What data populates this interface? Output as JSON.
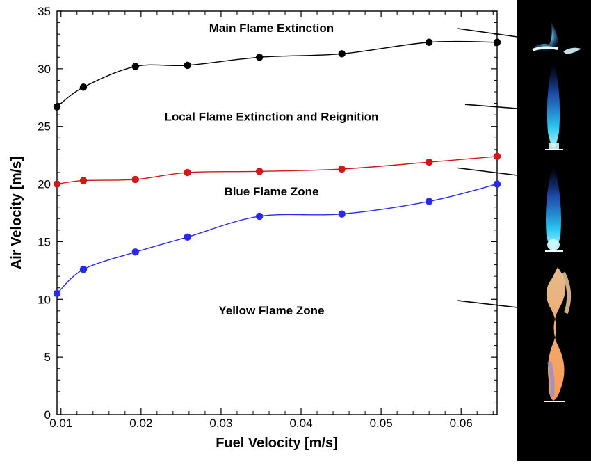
{
  "chart_data": {
    "type": "line",
    "title": "",
    "xlabel": "Fuel Velocity [m/s]",
    "ylabel": "Air Velocity [m/s]",
    "xlim": [
      0.0095,
      0.0645
    ],
    "ylim": [
      0,
      35
    ],
    "xticks": [
      0.01,
      0.02,
      0.03,
      0.04,
      0.05,
      0.06
    ],
    "xtick_labels": [
      "0.01",
      "0.02",
      "0.03",
      "0.04",
      "0.05",
      "0.06"
    ],
    "yticks": [
      0,
      5,
      10,
      15,
      20,
      25,
      30,
      35
    ],
    "ytick_labels": [
      "0",
      "5",
      "10",
      "15",
      "20",
      "25",
      "30",
      "35"
    ],
    "grid": false,
    "legend": false,
    "x": [
      0.0095,
      0.0128,
      0.0193,
      0.0258,
      0.0348,
      0.0451,
      0.056,
      0.0645
    ],
    "series": [
      {
        "color": "#000000",
        "values": [
          26.7,
          28.4,
          30.2,
          30.3,
          31.0,
          31.3,
          32.3,
          32.3
        ]
      },
      {
        "color": "#d01818",
        "values": [
          20.0,
          20.3,
          20.4,
          21.0,
          21.1,
          21.3,
          21.9,
          22.4
        ]
      },
      {
        "color": "#2a2aee",
        "values": [
          10.5,
          12.6,
          14.1,
          15.4,
          17.2,
          17.4,
          18.5,
          20.0
        ]
      }
    ],
    "annotations": [
      {
        "text": "Main  Flame Extinction",
        "x": 0.0363,
        "y": 33.2
      },
      {
        "text": "Local Flame Extinction and Reignition",
        "x": 0.0363,
        "y": 25.5
      },
      {
        "text": "Blue Flame Zone",
        "x": 0.0363,
        "y": 19.0
      },
      {
        "text": "Yellow Flame Zone",
        "x": 0.0363,
        "y": 8.7
      }
    ],
    "leader_lines": [
      {
        "from": [
          0.0595,
          33.5
        ],
        "to_photo": 0
      },
      {
        "from": [
          0.0605,
          26.9
        ],
        "to_photo": 1
      },
      {
        "from": [
          0.0595,
          21.4
        ],
        "to_photo": 2
      },
      {
        "from": [
          0.0595,
          9.9
        ],
        "to_photo": 3
      }
    ],
    "photos": [
      {
        "name": "extinction-flame-photo"
      },
      {
        "name": "local-extinction-flame-photo"
      },
      {
        "name": "blue-flame-photo"
      },
      {
        "name": "yellow-flame-photo"
      }
    ]
  }
}
